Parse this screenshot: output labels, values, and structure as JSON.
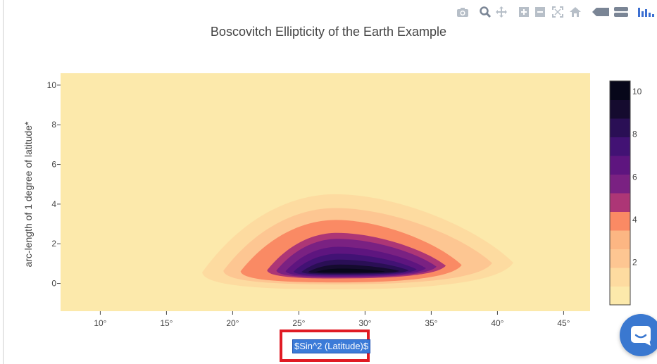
{
  "modebar": {
    "icons": [
      "camera-icon",
      "zoom-icon",
      "pan-icon",
      "zoom-in-icon",
      "zoom-out-icon",
      "autoscale-icon",
      "home-icon",
      "hover-closest-icon",
      "hover-compare-icon",
      "plotly-logo-icon"
    ]
  },
  "chart_data": {
    "type": "heatmap",
    "subtype": "contour",
    "title": "Boscovitch Ellipticity of the Earth Example",
    "xlabel": "$Sin^2 (Latitude)$",
    "ylabel": "arc-length of 1 degree of latitude*",
    "xlim": [
      7,
      47
    ],
    "ylim": [
      -1.4,
      10.6
    ],
    "x_ticks": [
      "10°",
      "15°",
      "20°",
      "25°",
      "30°",
      "35°",
      "40°",
      "45°"
    ],
    "x_tick_values": [
      10,
      15,
      20,
      25,
      30,
      35,
      40,
      45
    ],
    "y_ticks": [
      "0",
      "2",
      "4",
      "6",
      "8",
      "10"
    ],
    "y_tick_values": [
      0,
      2,
      4,
      6,
      8,
      10
    ],
    "peak": {
      "x": 28,
      "y": 0.6,
      "z": 10.5
    },
    "contour_levels": [
      {
        "level": 1,
        "x": [
          17.7,
          41.2
        ],
        "y": [
          -0.3,
          4.5
        ]
      },
      {
        "level": 2,
        "x": [
          19.3,
          39.6
        ],
        "y": [
          -0.05,
          3.8
        ]
      },
      {
        "level": 3,
        "x": [
          20.6,
          37.3
        ],
        "y": [
          0.05,
          3.2
        ]
      },
      {
        "level": 4,
        "x": [
          22.6,
          36.1
        ],
        "y": [
          0.25,
          2.55
        ]
      },
      {
        "level": 5,
        "x": [
          23.3,
          35.4
        ],
        "y": [
          0.3,
          2.25
        ]
      },
      {
        "level": 6,
        "x": [
          24.0,
          34.6
        ],
        "y": [
          0.35,
          1.85
        ]
      },
      {
        "level": 7,
        "x": [
          24.6,
          33.9
        ],
        "y": [
          0.4,
          1.5
        ]
      },
      {
        "level": 8,
        "x": [
          25.2,
          33.3
        ],
        "y": [
          0.45,
          1.2
        ]
      },
      {
        "level": 9,
        "x": [
          25.7,
          32.6
        ],
        "y": [
          0.5,
          0.95
        ]
      },
      {
        "level": 10,
        "x": [
          26.3,
          31.5
        ],
        "y": [
          0.55,
          0.75
        ]
      }
    ],
    "colorscale": {
      "min": 0,
      "max": 10.5,
      "ticks": [
        "2",
        "4",
        "6",
        "8",
        "10"
      ],
      "tick_values": [
        2,
        4,
        6,
        8,
        10
      ],
      "colors": [
        "#fce9ab",
        "#fddba0",
        "#fdc692",
        "#fcb683",
        "#fa8a64",
        "#ad3676",
        "#7a2182",
        "#5e157f",
        "#421274",
        "#2a0f55",
        "#150b2f",
        "#07071a"
      ]
    }
  }
}
